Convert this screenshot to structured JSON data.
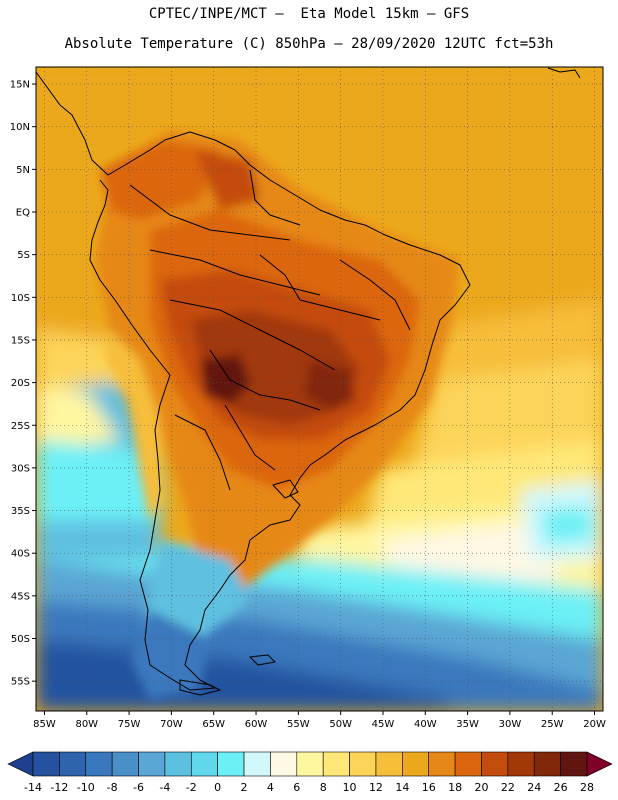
{
  "header": {
    "line1": "CPTEC/INPE/MCT —  Eta Model 15km — GFS",
    "line2": "Absolute Temperature (C) 850hPa — 28/09/2020 12UTC fct=53h"
  },
  "map": {
    "lon_range": [
      -86,
      -19
    ],
    "lat_range": [
      -58.5,
      17
    ],
    "lat_ticks": [
      {
        "value": 15,
        "label": "15N"
      },
      {
        "value": 10,
        "label": "10N"
      },
      {
        "value": 5,
        "label": "5N"
      },
      {
        "value": 0,
        "label": "EQ"
      },
      {
        "value": -5,
        "label": "5S"
      },
      {
        "value": -10,
        "label": "10S"
      },
      {
        "value": -15,
        "label": "15S"
      },
      {
        "value": -20,
        "label": "20S"
      },
      {
        "value": -25,
        "label": "25S"
      },
      {
        "value": -30,
        "label": "30S"
      },
      {
        "value": -35,
        "label": "35S"
      },
      {
        "value": -40,
        "label": "40S"
      },
      {
        "value": -45,
        "label": "45S"
      },
      {
        "value": -50,
        "label": "50S"
      },
      {
        "value": -55,
        "label": "55S"
      }
    ],
    "lon_ticks": [
      {
        "value": -85,
        "label": "85W"
      },
      {
        "value": -80,
        "label": "80W"
      },
      {
        "value": -75,
        "label": "75W"
      },
      {
        "value": -70,
        "label": "70W"
      },
      {
        "value": -65,
        "label": "65W"
      },
      {
        "value": -60,
        "label": "60W"
      },
      {
        "value": -55,
        "label": "55W"
      },
      {
        "value": -50,
        "label": "50W"
      },
      {
        "value": -45,
        "label": "45W"
      },
      {
        "value": -40,
        "label": "40W"
      },
      {
        "value": -35,
        "label": "35W"
      },
      {
        "value": -30,
        "label": "30W"
      },
      {
        "value": -25,
        "label": "25W"
      },
      {
        "value": -20,
        "label": "20W"
      }
    ],
    "gridlines": "dotted"
  },
  "colorbar": {
    "unit": "C",
    "levels": [
      "-14",
      "-12",
      "-10",
      "-8",
      "-6",
      "-4",
      "-2",
      "0",
      "2",
      "4",
      "6",
      "8",
      "10",
      "12",
      "14",
      "16",
      "18",
      "20",
      "22",
      "24",
      "26",
      "28"
    ],
    "colors": [
      "#1f3f8f",
      "#2452a0",
      "#2e63ae",
      "#3a78bd",
      "#4a90c8",
      "#5aa6d4",
      "#5ec0e0",
      "#60d8ec",
      "#6cf0f6",
      "#d2f8fc",
      "#fff8e4",
      "#fff6a0",
      "#ffe878",
      "#fdd45a",
      "#f6be3a",
      "#eca81c",
      "#e68818",
      "#dc6610",
      "#c44c0c",
      "#a23808",
      "#82280a",
      "#621410",
      "#800028"
    ]
  }
}
